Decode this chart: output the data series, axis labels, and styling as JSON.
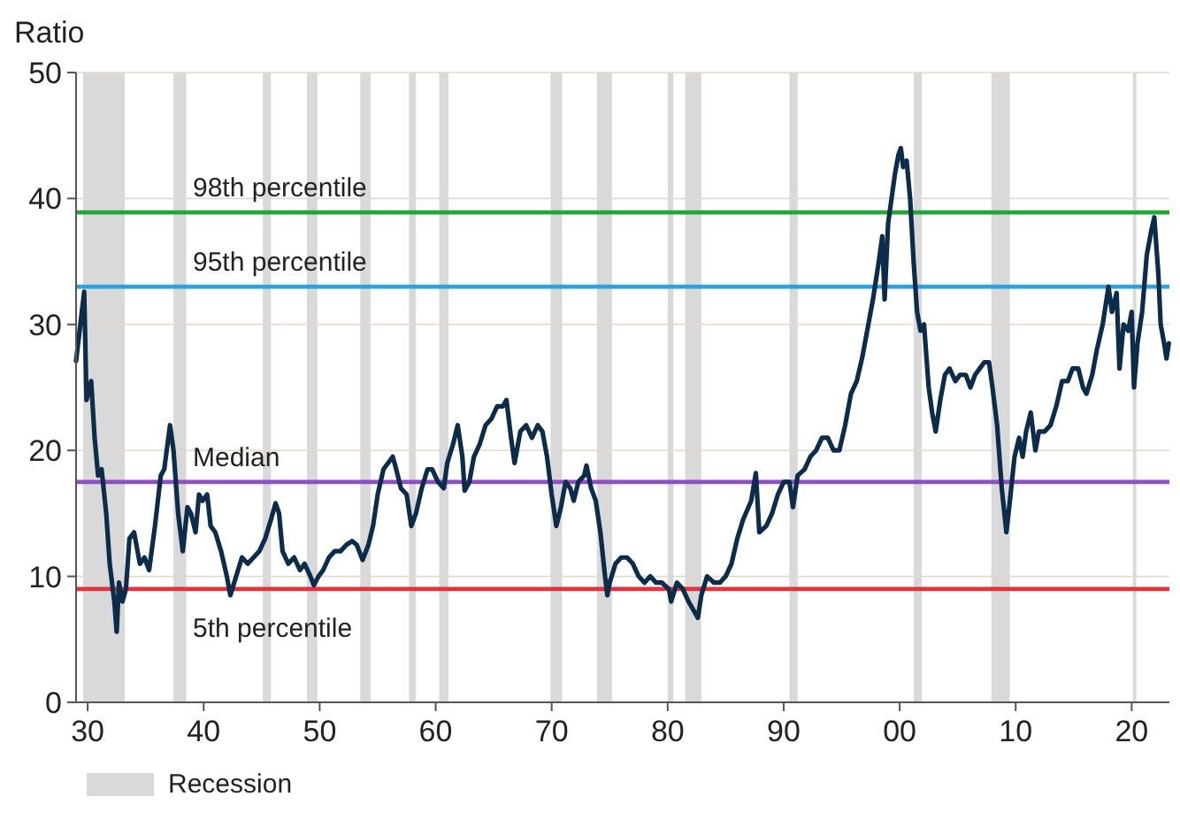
{
  "chart_data": {
    "type": "line",
    "ylabel": "Ratio",
    "x": [
      1929.0,
      1929.7,
      1929.9,
      1930.3,
      1930.6,
      1930.9,
      1931.2,
      1931.6,
      1931.9,
      1932.3,
      1932.5,
      1932.7,
      1933.0,
      1933.3,
      1933.6,
      1934.0,
      1934.5,
      1934.9,
      1935.3,
      1935.8,
      1936.3,
      1936.6,
      1937.1,
      1937.4,
      1937.8,
      1938.2,
      1938.6,
      1938.9,
      1939.3,
      1939.6,
      1939.9,
      1940.3,
      1940.6,
      1941.0,
      1941.5,
      1942.0,
      1942.3,
      1942.8,
      1943.3,
      1943.8,
      1944.3,
      1944.8,
      1945.3,
      1945.8,
      1946.2,
      1946.5,
      1946.8,
      1947.3,
      1947.8,
      1948.3,
      1948.7,
      1949.2,
      1949.5,
      1949.9,
      1950.3,
      1950.8,
      1951.3,
      1951.8,
      1952.3,
      1952.8,
      1953.2,
      1953.7,
      1954.2,
      1954.6,
      1955.0,
      1955.5,
      1955.9,
      1956.3,
      1956.6,
      1957.0,
      1957.5,
      1957.9,
      1958.3,
      1958.8,
      1959.3,
      1959.7,
      1960.2,
      1960.7,
      1961.0,
      1961.5,
      1961.9,
      1962.3,
      1962.5,
      1962.9,
      1963.3,
      1963.8,
      1964.3,
      1964.8,
      1965.3,
      1965.8,
      1966.1,
      1966.5,
      1966.8,
      1967.3,
      1967.8,
      1968.3,
      1968.8,
      1969.2,
      1969.6,
      1970.0,
      1970.4,
      1970.8,
      1971.2,
      1971.6,
      1971.9,
      1972.3,
      1972.8,
      1973.0,
      1973.4,
      1973.8,
      1974.2,
      1974.6,
      1974.8,
      1975.0,
      1975.5,
      1976.0,
      1976.5,
      1977.0,
      1977.5,
      1978.0,
      1978.5,
      1979.0,
      1979.5,
      1980.1,
      1980.3,
      1980.8,
      1981.3,
      1981.8,
      1982.3,
      1982.6,
      1982.9,
      1983.4,
      1984.0,
      1984.5,
      1985.0,
      1985.5,
      1986.0,
      1986.5,
      1987.2,
      1987.6,
      1987.9,
      1988.5,
      1989.0,
      1989.5,
      1990.0,
      1990.5,
      1990.8,
      1991.2,
      1991.8,
      1992.3,
      1992.8,
      1993.3,
      1993.8,
      1994.3,
      1994.8,
      1995.3,
      1995.8,
      1996.3,
      1996.8,
      1997.3,
      1997.7,
      1998.2,
      1998.5,
      1998.7,
      1999.0,
      1999.3,
      1999.6,
      1999.9,
      2000.1,
      2000.3,
      2000.6,
      2000.9,
      2001.2,
      2001.5,
      2001.8,
      2002.1,
      2002.5,
      2002.8,
      2003.1,
      2003.5,
      2003.9,
      2004.3,
      2004.8,
      2005.2,
      2005.7,
      2006.1,
      2006.5,
      2006.9,
      2007.3,
      2007.7,
      2008.0,
      2008.4,
      2008.8,
      2009.2,
      2009.5,
      2009.9,
      2010.3,
      2010.6,
      2010.9,
      2011.3,
      2011.7,
      2012.0,
      2012.5,
      2013.0,
      2013.5,
      2014.0,
      2014.5,
      2014.9,
      2015.4,
      2015.8,
      2016.1,
      2016.6,
      2017.0,
      2017.5,
      2018.0,
      2018.3,
      2018.7,
      2018.95,
      2019.3,
      2019.7,
      2020.0,
      2020.2,
      2020.5,
      2020.9,
      2021.3,
      2021.7,
      2021.95,
      2022.3,
      2022.5,
      2022.8,
      2023.0,
      2023.2
    ],
    "series": [
      {
        "color": "#0d2c4a",
        "values": [
          27.1,
          32.6,
          24,
          25.5,
          21,
          18,
          18.5,
          15,
          11,
          8,
          5.6,
          9.5,
          8,
          9,
          13,
          13.5,
          11,
          11.5,
          10.5,
          14,
          18,
          18.5,
          22,
          20,
          15,
          12,
          15.5,
          15,
          13.5,
          16.5,
          16,
          16.5,
          14,
          13.5,
          12,
          10,
          8.5,
          10,
          11.5,
          11,
          11.5,
          12,
          13,
          14.5,
          15.8,
          15,
          12,
          11,
          11.5,
          10.5,
          11,
          10,
          9.3,
          10,
          10.5,
          11.5,
          12,
          12,
          12.5,
          12.8,
          12.5,
          11.3,
          12.5,
          14,
          16.5,
          18.5,
          19,
          19.5,
          18.5,
          17,
          16.5,
          14,
          15,
          17,
          18.5,
          18.5,
          17.5,
          17,
          19,
          20.5,
          22,
          19.5,
          16.8,
          17.5,
          19.5,
          20.5,
          22,
          22.5,
          23.5,
          23.5,
          24,
          21,
          19,
          21.5,
          22,
          21,
          22,
          21.5,
          19.5,
          16.5,
          14,
          15.5,
          17.5,
          17,
          16,
          17.5,
          18,
          18.8,
          17,
          16,
          13.5,
          10,
          8.5,
          9.5,
          11,
          11.5,
          11.5,
          11,
          10,
          9.5,
          10,
          9.5,
          9.5,
          9,
          8,
          9.5,
          9,
          8,
          7.2,
          6.7,
          8.5,
          10,
          9.5,
          9.5,
          10,
          11,
          13,
          14.5,
          16,
          18.2,
          13.5,
          14,
          15,
          16.5,
          17.5,
          17.5,
          15.5,
          18,
          18.5,
          19.5,
          20,
          21,
          21,
          20,
          20,
          22,
          24.5,
          25.5,
          27.5,
          30,
          32,
          35,
          37,
          32,
          38,
          40,
          42,
          43.5,
          44,
          42.5,
          43,
          40,
          35,
          31,
          29.5,
          30,
          25,
          23,
          21.5,
          24,
          26,
          26.5,
          25.5,
          26,
          26,
          25,
          26,
          26.5,
          27,
          27,
          25,
          22,
          17,
          13.5,
          16,
          19.5,
          21,
          19.5,
          21.5,
          23,
          20,
          21.5,
          21.5,
          22,
          23.5,
          25.5,
          25.5,
          26.5,
          26.5,
          25,
          24.5,
          26,
          28,
          30,
          33,
          31,
          32.5,
          26.5,
          30,
          29.5,
          31,
          25,
          28.5,
          31,
          35.5,
          37.5,
          38.5,
          34,
          30,
          28.5,
          27.3,
          28.5
        ]
      }
    ],
    "xlim": [
      1929,
      2023.25
    ],
    "xticks": [
      {
        "value": 1930,
        "label": "30"
      },
      {
        "value": 1940,
        "label": "40"
      },
      {
        "value": 1950,
        "label": "50"
      },
      {
        "value": 1960,
        "label": "60"
      },
      {
        "value": 1970,
        "label": "70"
      },
      {
        "value": 1980,
        "label": "80"
      },
      {
        "value": 1990,
        "label": "90"
      },
      {
        "value": 2000,
        "label": "00"
      },
      {
        "value": 2010,
        "label": "10"
      },
      {
        "value": 2020,
        "label": "20"
      }
    ],
    "ylim": [
      0,
      50
    ],
    "yticks": [
      0,
      10,
      20,
      30,
      40,
      50
    ],
    "grid": "y",
    "marker": "none",
    "line_style": "solid",
    "legend": "bottom left",
    "ref_lines": [
      {
        "axis": "y",
        "value": 38.9,
        "label": "98th percentile",
        "color": "#22a63a"
      },
      {
        "axis": "y",
        "value": 33,
        "label": "95th percentile",
        "color": "#2aa3e0"
      },
      {
        "axis": "y",
        "value": 17.5,
        "label": "Median",
        "color": "#8e4fc4"
      },
      {
        "axis": "y",
        "value": 9,
        "label": "5th percentile",
        "color": "#e0353d"
      }
    ],
    "bands": [
      {
        "axis": "x",
        "from": 1929.6,
        "to": 1933.2,
        "label": "Recession",
        "color": "#d9d9d9"
      },
      {
        "axis": "x",
        "from": 1937.4,
        "to": 1938.5,
        "color": "#d9d9d9"
      },
      {
        "axis": "x",
        "from": 1945.1,
        "to": 1945.8,
        "color": "#d9d9d9"
      },
      {
        "axis": "x",
        "from": 1948.9,
        "to": 1949.8,
        "color": "#d9d9d9"
      },
      {
        "axis": "x",
        "from": 1953.5,
        "to": 1954.4,
        "color": "#d9d9d9"
      },
      {
        "axis": "x",
        "from": 1957.7,
        "to": 1958.3,
        "color": "#d9d9d9"
      },
      {
        "axis": "x",
        "from": 1960.3,
        "to": 1961.1,
        "color": "#d9d9d9"
      },
      {
        "axis": "x",
        "from": 1969.9,
        "to": 1970.9,
        "color": "#d9d9d9"
      },
      {
        "axis": "x",
        "from": 1973.9,
        "to": 1975.2,
        "color": "#d9d9d9"
      },
      {
        "axis": "x",
        "from": 1980.0,
        "to": 1980.5,
        "color": "#d9d9d9"
      },
      {
        "axis": "x",
        "from": 1981.5,
        "to": 1982.9,
        "color": "#d9d9d9"
      },
      {
        "axis": "x",
        "from": 1990.5,
        "to": 1991.2,
        "color": "#d9d9d9"
      },
      {
        "axis": "x",
        "from": 2001.2,
        "to": 2001.9,
        "color": "#d9d9d9"
      },
      {
        "axis": "x",
        "from": 2007.9,
        "to": 2009.5,
        "color": "#d9d9d9"
      },
      {
        "axis": "x",
        "from": 2020.1,
        "to": 2020.4,
        "color": "#d9d9d9"
      }
    ]
  }
}
